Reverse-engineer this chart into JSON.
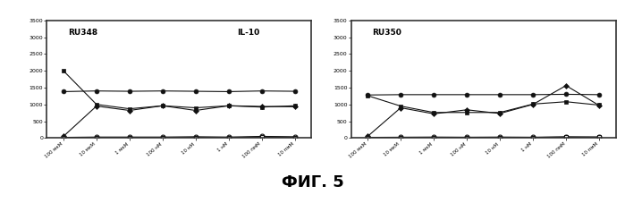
{
  "left_title1": "RU348",
  "left_title2": "IL-10",
  "right_title": "RU350",
  "caption": "ФИГ. 5",
  "x_labels": [
    "100 мкМ",
    "10 мкМ",
    "1 мкМ",
    "100 нМ",
    "10 нМ",
    "1 нМ",
    "100 пмМ",
    "10 пмМ"
  ],
  "ylim": [
    0,
    3500
  ],
  "yticks": [
    0,
    500,
    1000,
    1500,
    2000,
    2500,
    3000,
    3500
  ],
  "ytick_labels": [
    "0",
    "500",
    "1000",
    "1500",
    "2000",
    "2500",
    "3000",
    "3500"
  ],
  "left_lines": {
    "circle_filled": [
      1380,
      1400,
      1390,
      1400,
      1390,
      1380,
      1400,
      1390
    ],
    "square_filled": [
      2000,
      1000,
      870,
      960,
      900,
      960,
      920,
      960
    ],
    "diamond_filled": [
      50,
      950,
      820,
      960,
      820,
      960,
      940,
      930
    ],
    "circle_open": [
      20,
      30,
      30,
      30,
      40,
      30,
      50,
      40
    ],
    "square_open": [
      10,
      15,
      20,
      15,
      20,
      15,
      30,
      20
    ]
  },
  "right_lines": {
    "circle_filled": [
      1280,
      1290,
      1290,
      1290,
      1290,
      1290,
      1300,
      1290
    ],
    "square_filled": [
      1260,
      950,
      760,
      760,
      760,
      1010,
      1080,
      980
    ],
    "diamond_filled": [
      50,
      900,
      720,
      840,
      730,
      1000,
      1560,
      970
    ],
    "circle_open": [
      20,
      25,
      30,
      25,
      30,
      25,
      40,
      30
    ],
    "square_open": [
      10,
      15,
      15,
      20,
      15,
      20,
      25,
      30
    ]
  },
  "bg_color": "#f0f0f0",
  "line_color": "#111111",
  "border_color": "#333333",
  "panel_border_color": "#555555",
  "outer_border_color": "#888888"
}
